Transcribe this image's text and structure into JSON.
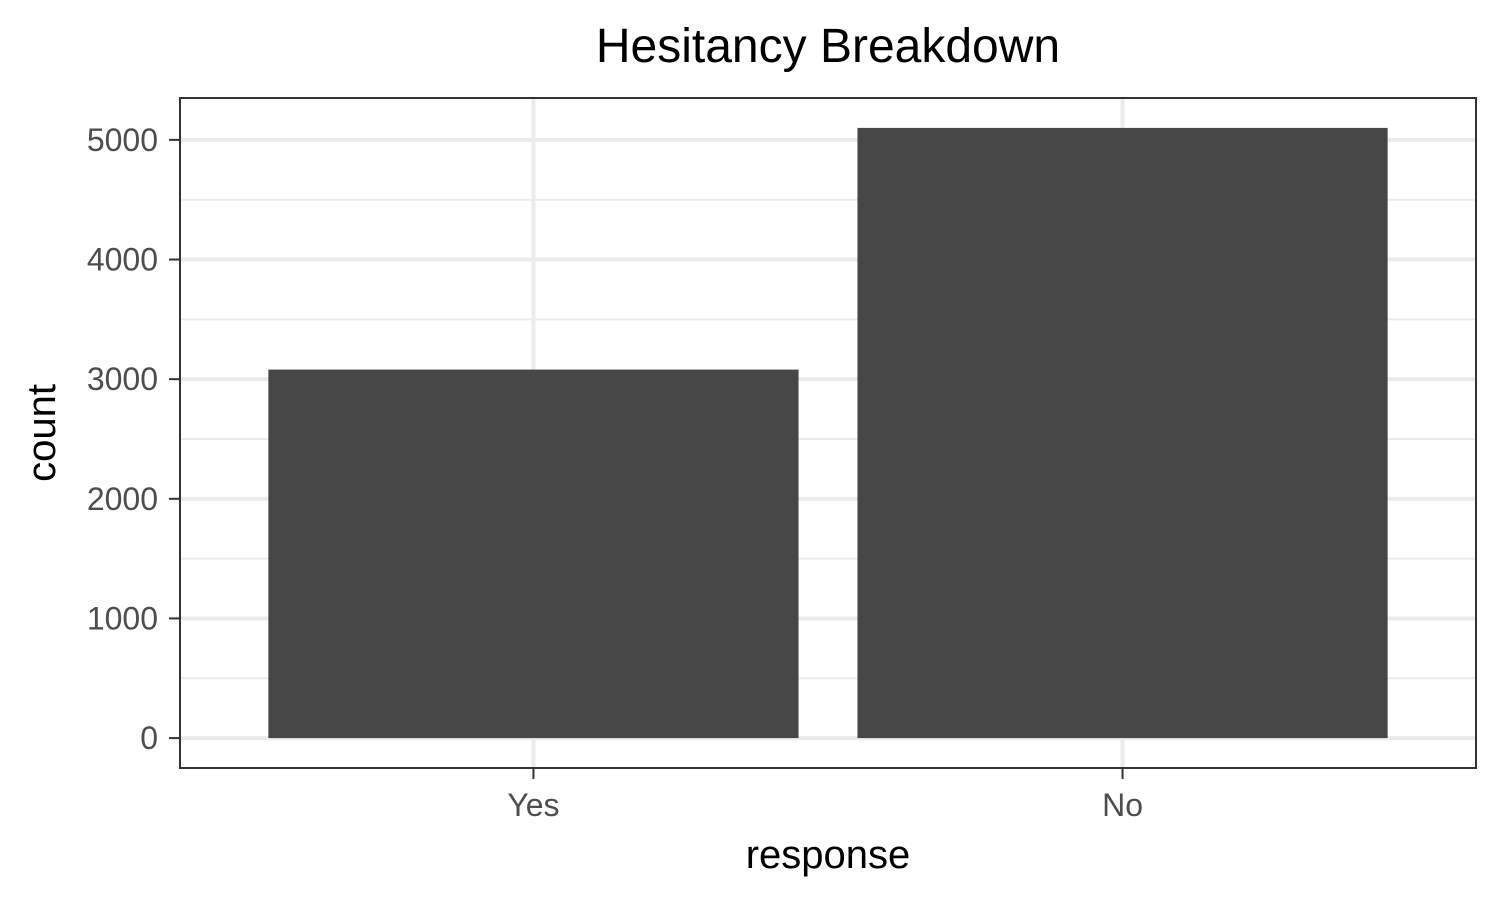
{
  "chart_data": {
    "type": "bar",
    "title": "Hesitancy Breakdown",
    "xlabel": "response",
    "ylabel": "count",
    "categories": [
      "Yes",
      "No"
    ],
    "values": [
      3080,
      5100
    ],
    "ylim": [
      -250,
      5350
    ],
    "yticks": [
      0,
      1000,
      2000,
      3000,
      4000,
      5000
    ],
    "yminor": [
      500,
      1500,
      2500,
      3500,
      4500
    ],
    "grid": true,
    "legend": "none",
    "colors": {
      "bar": "#474747",
      "grid": "#ebebeb",
      "panel_border": "#333333",
      "tick_label": "#4d4d4d",
      "text": "#000000"
    }
  }
}
